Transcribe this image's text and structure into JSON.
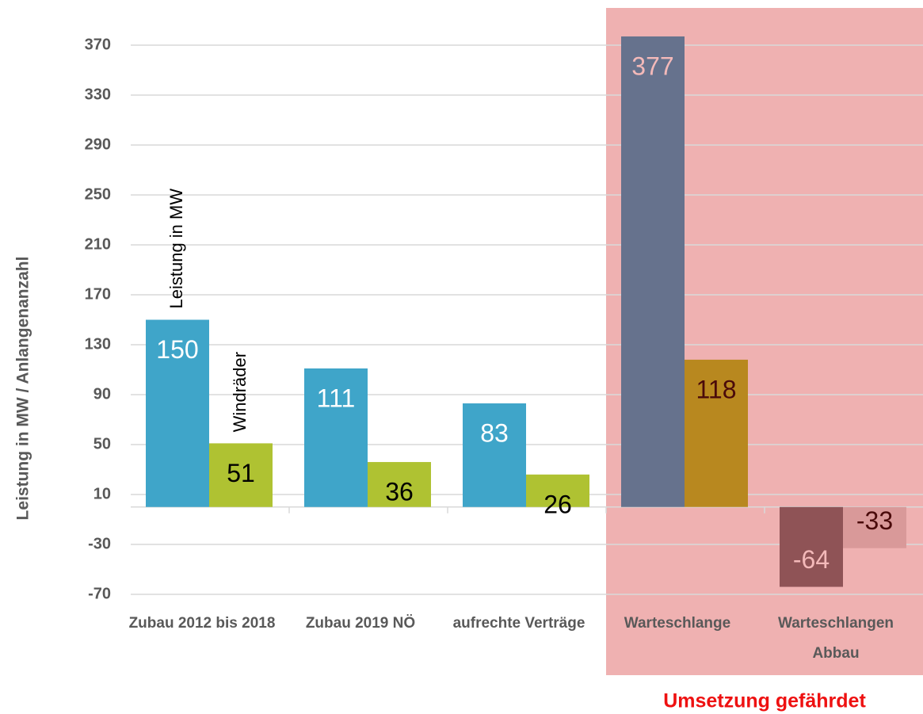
{
  "chart_data": {
    "type": "bar",
    "y_label": "Leistung in MW / Anlangenanzahl",
    "categories": [
      "Zubau 2012 bis 2018",
      "Zubau 2019 NÖ",
      "aufrechte Verträge",
      "Warteschlange",
      "Warteschlangen Abbau"
    ],
    "series": [
      {
        "name": "Leistung in MW",
        "color": "#3fa5c9",
        "colors": [
          "#3fa5c9",
          "#3fa5c9",
          "#3fa5c9",
          "#66728d",
          "#8f5356"
        ],
        "label_colors": [
          "#ffffff",
          "#ffffff",
          "#ffffff",
          "#f3b9b9",
          "#f3b9b9"
        ],
        "values": [
          150,
          111,
          83,
          377,
          -64
        ]
      },
      {
        "name": "Windräder",
        "color": "#afc232",
        "colors": [
          "#afc232",
          "#afc232",
          "#afc232",
          "#b8881f",
          "#d99999"
        ],
        "label_colors": [
          "#000000",
          "#000000",
          "#000000",
          "#4a0a0a",
          "#4a0a0a"
        ],
        "values": [
          51,
          36,
          26,
          118,
          -33
        ]
      }
    ],
    "ylim": [
      -70,
      380
    ],
    "yticks": [
      -70,
      -30,
      10,
      50,
      90,
      130,
      170,
      210,
      250,
      290,
      330,
      370
    ],
    "grid": true,
    "highlight": {
      "from": "Warteschlange",
      "text": "Umsetzung gefährdet",
      "color": "#efb1b1",
      "text_color": "#ee1111"
    }
  }
}
